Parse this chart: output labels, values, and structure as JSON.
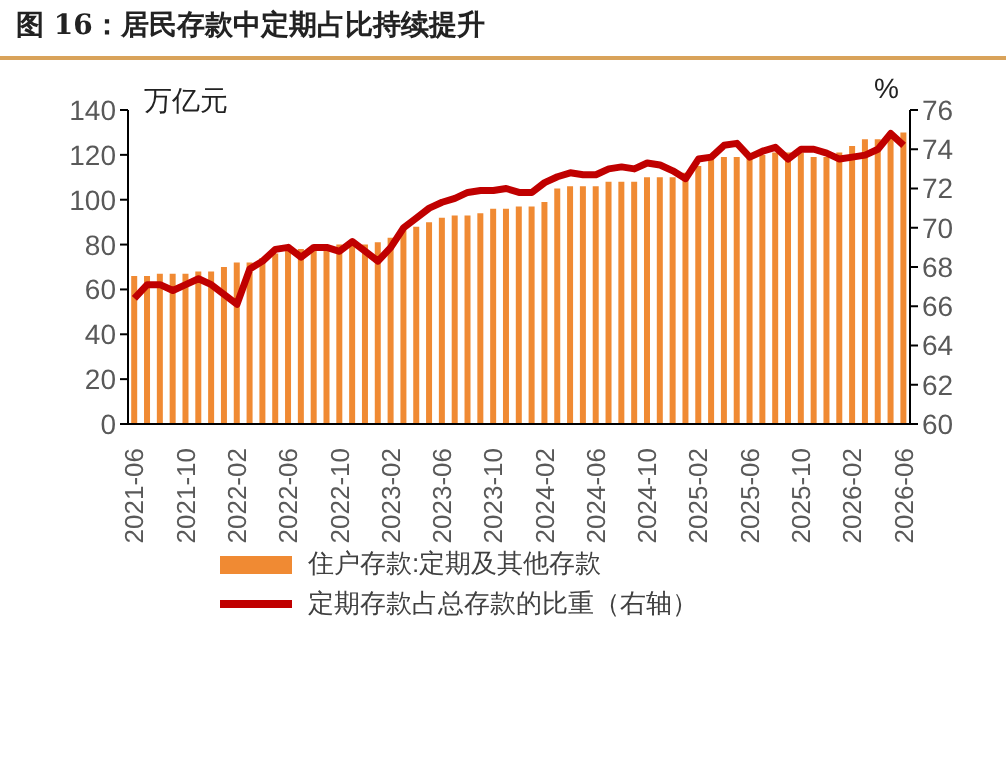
{
  "chart_data": {
    "type": "bar",
    "title": "图 16：居民存款中定期占比持续提升",
    "ylabel": "万亿元",
    "y2label": "%",
    "categories": [
      "2021-06",
      null,
      null,
      null,
      "2021-10",
      null,
      null,
      null,
      "2022-02",
      null,
      null,
      null,
      "2022-06",
      null,
      null,
      null,
      "2022-10",
      null,
      null,
      null,
      "2023-02",
      null,
      null,
      null,
      "2023-06",
      null,
      null,
      null,
      "2023-10",
      null,
      null,
      null,
      "2024-02",
      null,
      null,
      null,
      "2024-06",
      null,
      null,
      null,
      "2024-10",
      null,
      null,
      null,
      "2025-02",
      null,
      null,
      null,
      "2025-06",
      null,
      null,
      null,
      "2025-10",
      null,
      null,
      null,
      "2026-02",
      null,
      null,
      null,
      "2026-06"
    ],
    "series": [
      {
        "name": "住户存款:定期及其他存款",
        "color": "#f08a33",
        "values": [
          66,
          66,
          67,
          67,
          67,
          68,
          68,
          70,
          72,
          72,
          74,
          76,
          78,
          78,
          79,
          79,
          80,
          80,
          80,
          81,
          83,
          87,
          88,
          90,
          92,
          93,
          93,
          94,
          96,
          96,
          97,
          97,
          99,
          105,
          106,
          106,
          106,
          108,
          108,
          108,
          110,
          110,
          110,
          112,
          115,
          118,
          119,
          119,
          119,
          120,
          121,
          121,
          121,
          119,
          119,
          121,
          124,
          127,
          127,
          130,
          130
        ]
      },
      {
        "name": "定期存款占总存款的比重（右轴）",
        "type": "line",
        "axis": "y2",
        "color": "#c00000",
        "values": [
          66.4,
          67.1,
          67.1,
          66.8,
          67.1,
          67.4,
          67.1,
          66.6,
          66.1,
          67.9,
          68.3,
          68.9,
          69.0,
          68.5,
          69.0,
          69.0,
          68.8,
          69.3,
          68.8,
          68.3,
          69.0,
          70.0,
          70.5,
          71.0,
          71.3,
          71.5,
          71.8,
          71.9,
          71.9,
          72.0,
          71.8,
          71.8,
          72.3,
          72.6,
          72.8,
          72.7,
          72.7,
          73.0,
          73.1,
          73.0,
          73.3,
          73.2,
          72.9,
          72.5,
          73.5,
          73.6,
          74.2,
          74.3,
          73.6,
          73.9,
          74.1,
          73.5,
          74.0,
          74.0,
          73.8,
          73.5,
          73.6,
          73.7,
          74.0,
          74.8,
          74.2
        ]
      }
    ],
    "ylim": [
      0,
      140
    ],
    "yticks": [
      0,
      20,
      40,
      60,
      80,
      100,
      120,
      140
    ],
    "y2lim": [
      60,
      76
    ],
    "y2ticks": [
      60,
      62,
      64,
      66,
      68,
      70,
      72,
      74,
      76
    ],
    "grid": false,
    "legend": "bottom",
    "marker": "none",
    "line_style": "solid"
  }
}
